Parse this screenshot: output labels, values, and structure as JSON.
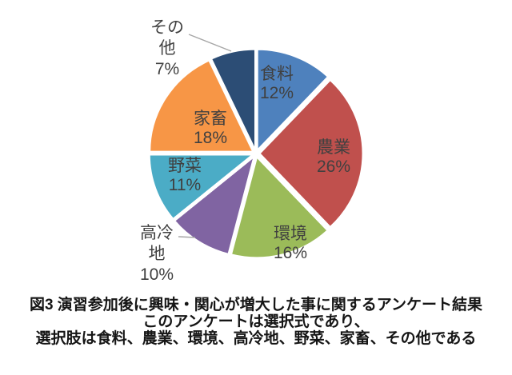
{
  "figure": {
    "caption": {
      "line1": "図3  演習参加後に興味・関心が増大した事に関するアンケート結果",
      "line2": "このアンケートは選択式であり、",
      "line3": "選択肢は食料、農業、環境、高冷地、野菜、家畜、その他である"
    }
  },
  "chart_data": {
    "type": "pie",
    "title": "",
    "unit": "%",
    "labels": [
      "食料",
      "農業",
      "環境",
      "高冷地",
      "野菜",
      "家畜",
      "その他"
    ],
    "values": [
      12,
      26,
      16,
      10,
      11,
      18,
      7
    ],
    "colors": [
      "#4E81BD",
      "#C0504D",
      "#9BBB59",
      "#8064A2",
      "#4BACC6",
      "#F79646",
      "#2C4D75"
    ],
    "label_lines": [
      [
        "食料",
        "12%"
      ],
      [
        "農業",
        "26%"
      ],
      [
        "環境",
        "16%"
      ],
      [
        "高冷",
        "地",
        "10%"
      ],
      [
        "野菜",
        "11%"
      ],
      [
        "家畜",
        "18%"
      ],
      [
        "その",
        "他",
        "7%"
      ]
    ],
    "label_color": "#404040",
    "leader_line_color": "#A6A6A6",
    "start_angle_deg": 0,
    "direction": "clockwise",
    "legend": "none",
    "grid": false
  }
}
